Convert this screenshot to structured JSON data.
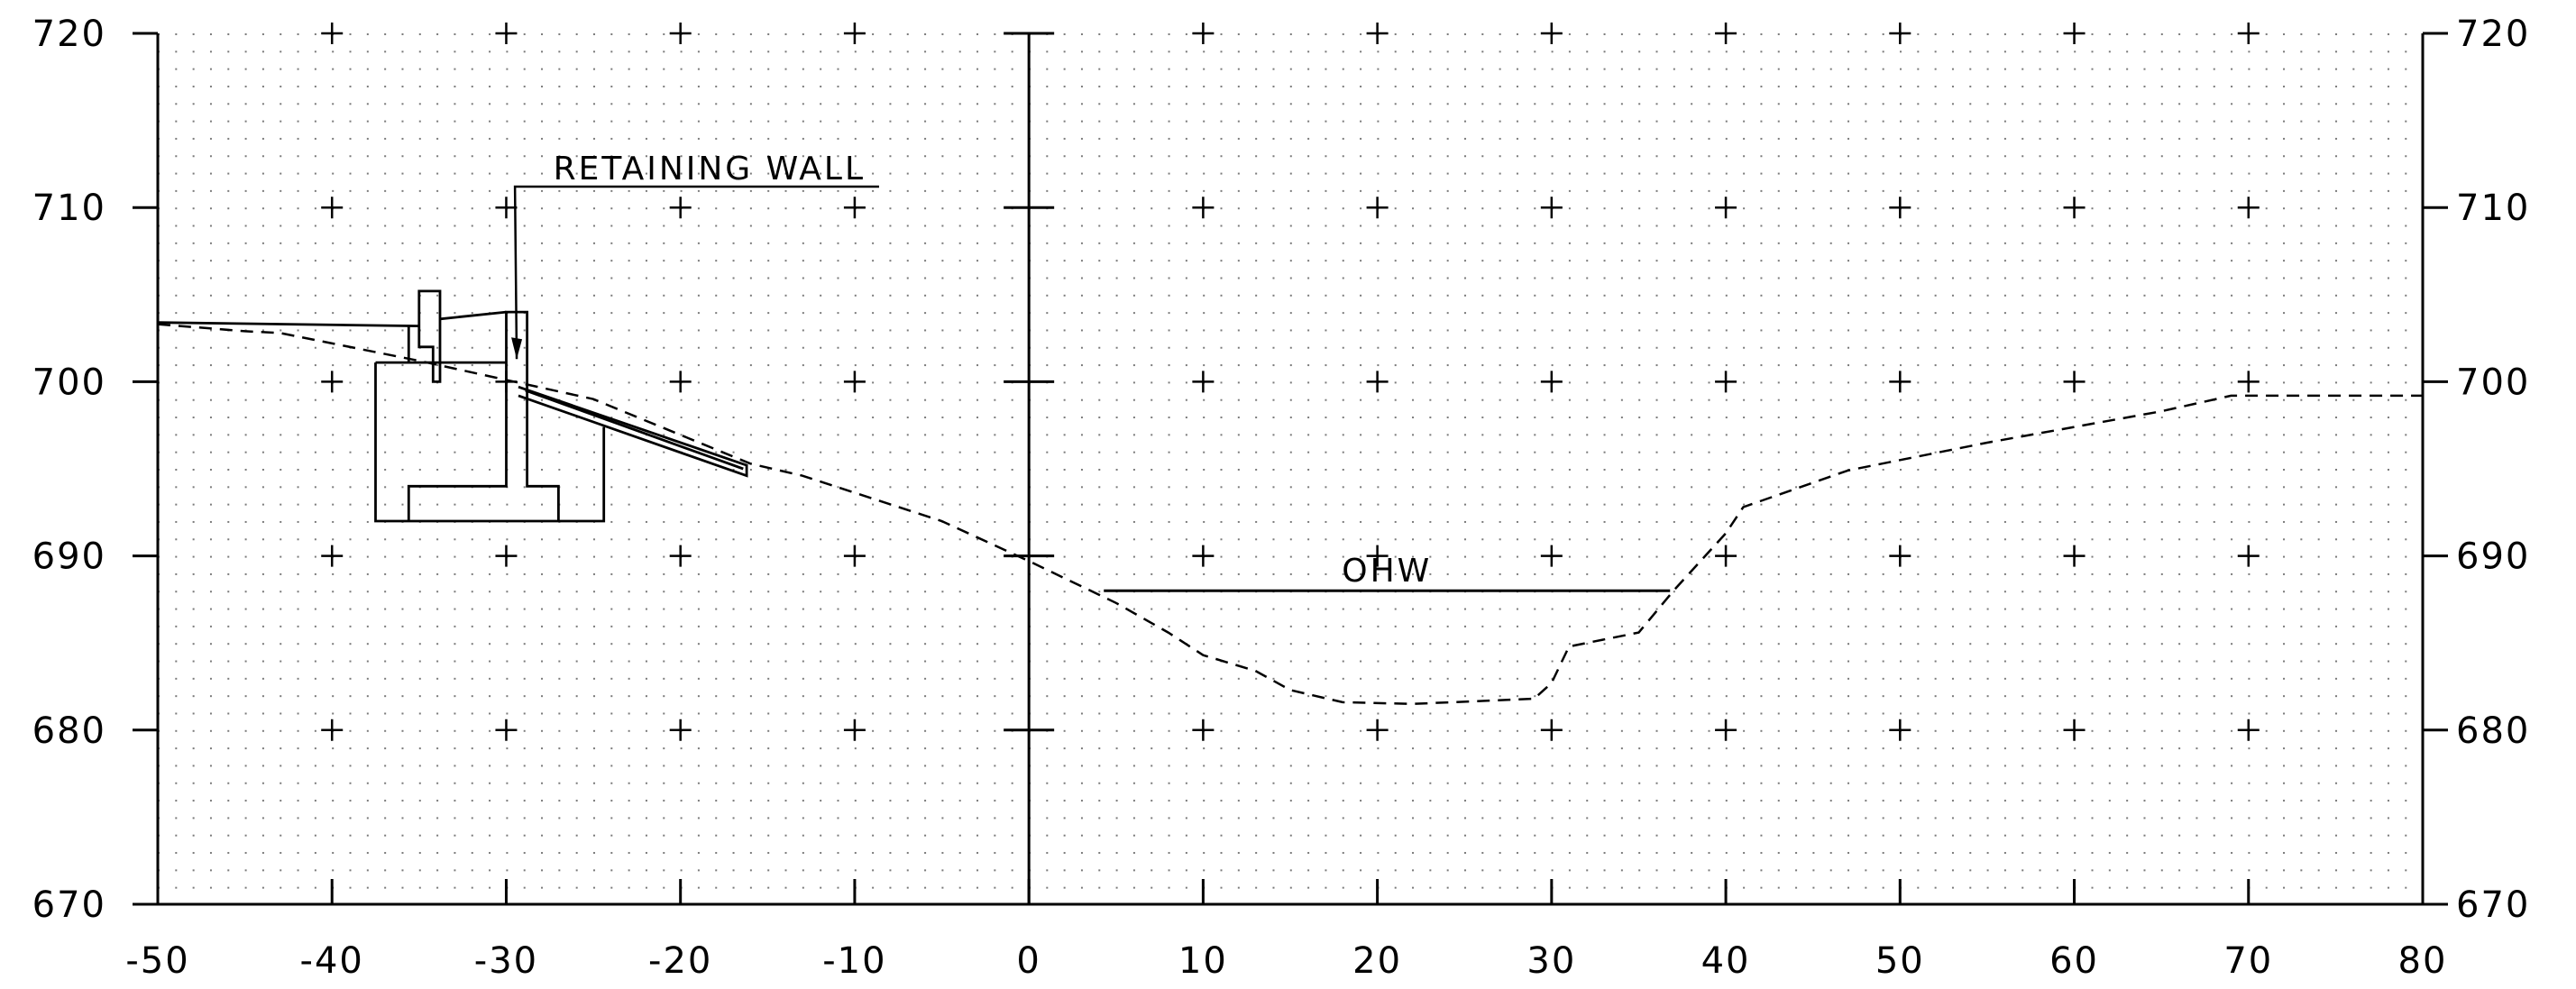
{
  "chart_data": {
    "type": "cross-section",
    "xlim": [
      -50,
      80
    ],
    "ylim": [
      670,
      720
    ],
    "x_ticks": [
      "-50",
      "-40",
      "-30",
      "-20",
      "-10",
      "0",
      "10",
      "20",
      "30",
      "40",
      "50",
      "60",
      "70",
      "80"
    ],
    "y_ticks": [
      "720",
      "710",
      "700",
      "690",
      "680",
      "670"
    ],
    "grid": "dotted with + markers",
    "ground_profile": [
      [
        -50,
        703.3
      ],
      [
        -45,
        702.9
      ],
      [
        -43,
        702.8
      ],
      [
        -35,
        701.2
      ],
      [
        -25,
        699.0
      ],
      [
        -16,
        695.3
      ],
      [
        -13,
        694.6
      ],
      [
        -5,
        692.0
      ],
      [
        0,
        689.7
      ],
      [
        5,
        687.3
      ],
      [
        8,
        685.6
      ],
      [
        10,
        684.3
      ],
      [
        13,
        683.4
      ],
      [
        15,
        682.3
      ],
      [
        18,
        681.6
      ],
      [
        22,
        681.5
      ],
      [
        29,
        681.8
      ],
      [
        30,
        682.7
      ],
      [
        31,
        684.8
      ],
      [
        35,
        685.6
      ],
      [
        37,
        688.0
      ],
      [
        40,
        691.3
      ],
      [
        41,
        692.8
      ],
      [
        47,
        694.9
      ],
      [
        55,
        696.5
      ],
      [
        65,
        698.3
      ],
      [
        69,
        699.2
      ],
      [
        80,
        699.2
      ]
    ],
    "ohw": {
      "label": "OHW",
      "elevation": 688.0,
      "x_start": 4.3,
      "x_end": 36.8
    },
    "retaining_wall": {
      "label": "RETAINING WALL",
      "x": -30,
      "top_elevation": 704.0
    }
  }
}
